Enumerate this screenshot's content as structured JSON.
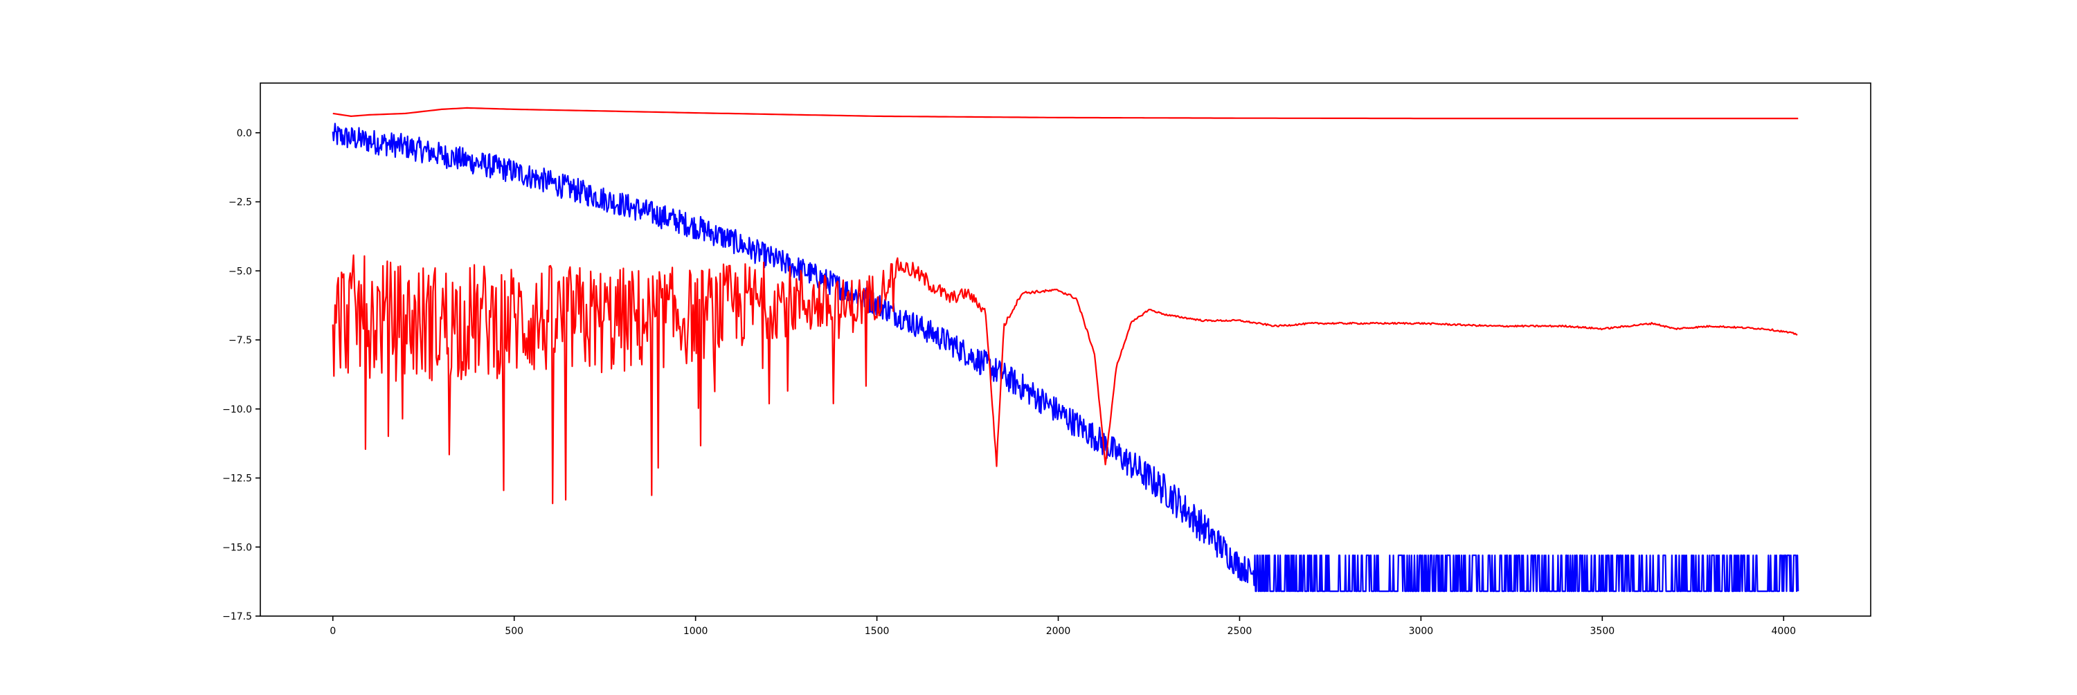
{
  "chart_data": {
    "type": "line",
    "title": "",
    "xlabel": "",
    "ylabel": "",
    "xlim": [
      -200,
      4240
    ],
    "ylim": [
      -17.5,
      1.8
    ],
    "x_ticks": [
      0,
      500,
      1000,
      1500,
      2000,
      2500,
      3000,
      3500,
      4000
    ],
    "x_tick_labels": [
      "0",
      "500",
      "1000",
      "1500",
      "2000",
      "2500",
      "3000",
      "3500",
      "4000"
    ],
    "y_ticks": [
      0.0,
      -2.5,
      -5.0,
      -7.5,
      -10.0,
      -12.5,
      -15.0,
      -17.5
    ],
    "y_tick_labels": [
      "0.0",
      "−2.5",
      "−5.0",
      "−7.5",
      "−10.0",
      "−12.5",
      "−15.0",
      "−17.5"
    ],
    "grid": false,
    "legend": "none",
    "series": [
      {
        "color": "#0000ff",
        "style": "noisy",
        "x": [
          0,
          100,
          200,
          300,
          400,
          500,
          600,
          700,
          800,
          900,
          1000,
          1100,
          1200,
          1300,
          1400,
          1500,
          1600,
          1700,
          1800,
          1900,
          2000,
          2100,
          2200,
          2300,
          2400,
          2500,
          2550,
          3000,
          3500,
          4040
        ],
        "y": [
          -0.1,
          -0.3,
          -0.5,
          -0.8,
          -1.1,
          -1.4,
          -1.8,
          -2.2,
          -2.6,
          -3.0,
          -3.4,
          -3.9,
          -4.5,
          -5.0,
          -5.6,
          -6.2,
          -6.9,
          -7.6,
          -8.4,
          -9.2,
          -10.1,
          -11.0,
          -12.0,
          -13.0,
          -14.3,
          -15.7,
          -16.0,
          -16.0,
          -16.0,
          -16.0
        ],
        "noise": [
          0.45,
          0.45,
          0.45,
          0.45,
          0.45,
          0.45,
          0.45,
          0.45,
          0.45,
          0.45,
          0.45,
          0.45,
          0.45,
          0.45,
          0.45,
          0.45,
          0.45,
          0.45,
          0.5,
          0.5,
          0.5,
          0.5,
          0.55,
          0.6,
          0.6,
          0.5,
          0.45,
          0.45,
          0.45,
          0.45
        ]
      },
      {
        "color": "#ff0000",
        "style": "smooth",
        "x": [
          0,
          50,
          100,
          200,
          300,
          370,
          500,
          700,
          1000,
          1500,
          2000,
          2500,
          3000,
          3500,
          4040
        ],
        "y": [
          0.7,
          0.6,
          0.65,
          0.7,
          0.85,
          0.9,
          0.85,
          0.8,
          0.72,
          0.6,
          0.55,
          0.53,
          0.52,
          0.52,
          0.52
        ]
      },
      {
        "color": "#ff0000",
        "style": "noisy",
        "x": [
          0,
          50,
          200,
          500,
          800,
          1000,
          1100,
          1200,
          1300,
          1400,
          1500,
          1560,
          1600,
          1650,
          1700,
          1750,
          1800,
          1830,
          1850,
          1900,
          2000,
          2050,
          2100,
          2130,
          2160,
          2200,
          2250,
          2300,
          2400,
          2500,
          2600,
          2700,
          2800,
          3000,
          3200,
          3400,
          3500,
          3640,
          3700,
          3800,
          3950,
          4000,
          4040
        ],
        "y": [
          -7.0,
          -6.8,
          -7.1,
          -7.0,
          -7.0,
          -6.8,
          -6.5,
          -6.2,
          -6.2,
          -6.5,
          -6.0,
          -4.8,
          -5.0,
          -5.5,
          -6.0,
          -5.8,
          -6.5,
          -12.0,
          -7.0,
          -5.8,
          -5.7,
          -6.0,
          -8.0,
          -12.0,
          -8.5,
          -6.9,
          -6.4,
          -6.6,
          -6.8,
          -6.8,
          -7.0,
          -6.9,
          -6.9,
          -6.9,
          -7.0,
          -7.0,
          -7.1,
          -6.9,
          -7.1,
          -7.0,
          -7.1,
          -7.2,
          -7.3
        ],
        "noise": [
          2.0,
          2.0,
          2.0,
          1.9,
          1.8,
          1.6,
          1.5,
          1.3,
          1.1,
          1.0,
          0.8,
          0.3,
          0.3,
          0.3,
          0.25,
          0.2,
          0.15,
          0.1,
          0.1,
          0.05,
          0.05,
          0.05,
          0.05,
          0.05,
          0.05,
          0.04,
          0.03,
          0.03,
          0.03,
          0.03,
          0.03,
          0.03,
          0.03,
          0.03,
          0.03,
          0.03,
          0.03,
          0.03,
          0.03,
          0.03,
          0.03,
          0.03,
          0.03
        ]
      }
    ]
  }
}
